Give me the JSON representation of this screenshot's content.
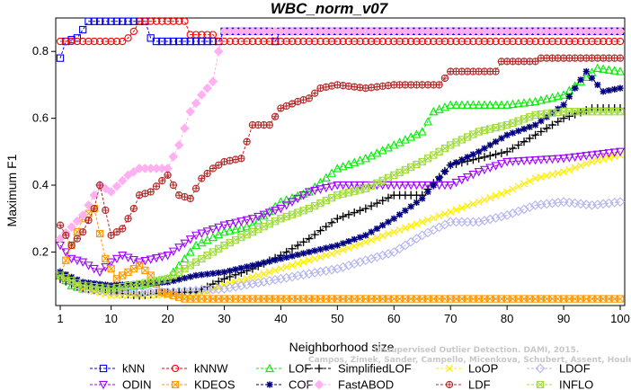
{
  "chart_data": {
    "type": "line",
    "title": "WBC_norm_v07",
    "xlabel": "Neighborhood size",
    "ylabel": "Maximum F1",
    "xlim": [
      1,
      100
    ],
    "ylim": [
      0.04,
      0.9
    ],
    "xticks": [
      1,
      10,
      20,
      30,
      40,
      50,
      60,
      70,
      80,
      90,
      100
    ],
    "yticks": [
      0.2,
      0.4,
      0.6,
      0.8
    ],
    "grid": false,
    "legend_position": "bottom",
    "watermark": [
      "Unsupervised Outlier Detection. DAMI, 2015.",
      "Campos, Zimek, Sander, Campello, Micenkova, Schubert, Assent, Houle"
    ],
    "series": [
      {
        "name": "kNN",
        "color": "#0000ff",
        "marker": "square",
        "points": [
          [
            1,
            0.78
          ],
          [
            2,
            0.83
          ],
          [
            4,
            0.84
          ],
          [
            6,
            0.89
          ],
          [
            16,
            0.89
          ],
          [
            17,
            0.84
          ],
          [
            18,
            0.83
          ],
          [
            29,
            0.83
          ],
          [
            30,
            0.86
          ],
          [
            38,
            0.86
          ],
          [
            39,
            0.83
          ],
          [
            40,
            0.86
          ],
          [
            100,
            0.86
          ]
        ]
      },
      {
        "name": "kNNW",
        "color": "#ff0000",
        "marker": "circle",
        "points": [
          [
            1,
            0.83
          ],
          [
            12,
            0.83
          ],
          [
            13,
            0.84
          ],
          [
            14,
            0.86
          ],
          [
            15,
            0.89
          ],
          [
            23,
            0.89
          ],
          [
            24,
            0.85
          ],
          [
            28,
            0.85
          ],
          [
            29,
            0.83
          ],
          [
            100,
            0.83
          ]
        ]
      },
      {
        "name": "LOF",
        "color": "#00ee00",
        "marker": "triangle-up",
        "points": [
          [
            1,
            0.13
          ],
          [
            3,
            0.1
          ],
          [
            5,
            0.09
          ],
          [
            10,
            0.09
          ],
          [
            15,
            0.1
          ],
          [
            20,
            0.12
          ],
          [
            25,
            0.22
          ],
          [
            30,
            0.26
          ],
          [
            35,
            0.28
          ],
          [
            40,
            0.35
          ],
          [
            45,
            0.38
          ],
          [
            50,
            0.45
          ],
          [
            55,
            0.48
          ],
          [
            60,
            0.52
          ],
          [
            65,
            0.56
          ],
          [
            67,
            0.62
          ],
          [
            70,
            0.64
          ],
          [
            75,
            0.64
          ],
          [
            80,
            0.64
          ],
          [
            85,
            0.65
          ],
          [
            90,
            0.67
          ],
          [
            93,
            0.71
          ],
          [
            96,
            0.75
          ],
          [
            100,
            0.74
          ]
        ]
      },
      {
        "name": "SimplifiedLOF",
        "color": "#000000",
        "marker": "plus",
        "points": [
          [
            1,
            0.12
          ],
          [
            5,
            0.09
          ],
          [
            10,
            0.08
          ],
          [
            15,
            0.07
          ],
          [
            20,
            0.08
          ],
          [
            25,
            0.08
          ],
          [
            30,
            0.12
          ],
          [
            35,
            0.15
          ],
          [
            40,
            0.19
          ],
          [
            45,
            0.24
          ],
          [
            50,
            0.3
          ],
          [
            55,
            0.33
          ],
          [
            60,
            0.37
          ],
          [
            65,
            0.37
          ],
          [
            70,
            0.46
          ],
          [
            75,
            0.48
          ],
          [
            80,
            0.5
          ],
          [
            85,
            0.55
          ],
          [
            90,
            0.6
          ],
          [
            95,
            0.63
          ],
          [
            100,
            0.63
          ]
        ]
      },
      {
        "name": "LoOP",
        "color": "#ffee00",
        "marker": "x",
        "points": [
          [
            1,
            0.14
          ],
          [
            5,
            0.09
          ],
          [
            10,
            0.07
          ],
          [
            20,
            0.07
          ],
          [
            25,
            0.07
          ],
          [
            30,
            0.1
          ],
          [
            40,
            0.15
          ],
          [
            50,
            0.2
          ],
          [
            55,
            0.23
          ],
          [
            60,
            0.26
          ],
          [
            65,
            0.29
          ],
          [
            70,
            0.32
          ],
          [
            75,
            0.35
          ],
          [
            80,
            0.38
          ],
          [
            85,
            0.42
          ],
          [
            90,
            0.44
          ],
          [
            95,
            0.47
          ],
          [
            100,
            0.49
          ]
        ]
      },
      {
        "name": "LDOF",
        "color": "#b4b4f0",
        "marker": "diamond",
        "points": [
          [
            1,
            0.14
          ],
          [
            5,
            0.09
          ],
          [
            10,
            0.08
          ],
          [
            20,
            0.08
          ],
          [
            30,
            0.09
          ],
          [
            40,
            0.12
          ],
          [
            50,
            0.15
          ],
          [
            60,
            0.2
          ],
          [
            65,
            0.25
          ],
          [
            70,
            0.29
          ],
          [
            75,
            0.29
          ],
          [
            80,
            0.31
          ],
          [
            85,
            0.34
          ],
          [
            90,
            0.35
          ],
          [
            95,
            0.34
          ],
          [
            100,
            0.35
          ]
        ]
      },
      {
        "name": "ODIN",
        "color": "#a000ff",
        "marker": "triangle-down",
        "points": [
          [
            1,
            0.22
          ],
          [
            3,
            0.18
          ],
          [
            5,
            0.17
          ],
          [
            8,
            0.14
          ],
          [
            10,
            0.17
          ],
          [
            12,
            0.19
          ],
          [
            15,
            0.17
          ],
          [
            20,
            0.19
          ],
          [
            25,
            0.25
          ],
          [
            30,
            0.28
          ],
          [
            35,
            0.3
          ],
          [
            40,
            0.33
          ],
          [
            45,
            0.38
          ],
          [
            50,
            0.4
          ],
          [
            60,
            0.4
          ],
          [
            70,
            0.4
          ],
          [
            75,
            0.44
          ],
          [
            80,
            0.47
          ],
          [
            90,
            0.48
          ],
          [
            100,
            0.5
          ]
        ]
      },
      {
        "name": "KDEOS",
        "color": "#ff9900",
        "marker": "square-x",
        "points": [
          [
            1,
            0.13
          ],
          [
            3,
            0.22
          ],
          [
            5,
            0.3
          ],
          [
            7,
            0.33
          ],
          [
            9,
            0.18
          ],
          [
            11,
            0.12
          ],
          [
            13,
            0.14
          ],
          [
            15,
            0.16
          ],
          [
            17,
            0.13
          ],
          [
            19,
            0.08
          ],
          [
            21,
            0.07
          ],
          [
            23,
            0.06
          ],
          [
            100,
            0.06
          ]
        ]
      },
      {
        "name": "COF",
        "color": "#000080",
        "marker": "star",
        "points": [
          [
            1,
            0.14
          ],
          [
            5,
            0.11
          ],
          [
            10,
            0.1
          ],
          [
            20,
            0.11
          ],
          [
            25,
            0.13
          ],
          [
            30,
            0.14
          ],
          [
            35,
            0.16
          ],
          [
            40,
            0.18
          ],
          [
            45,
            0.2
          ],
          [
            50,
            0.22
          ],
          [
            55,
            0.25
          ],
          [
            60,
            0.3
          ],
          [
            65,
            0.36
          ],
          [
            70,
            0.46
          ],
          [
            75,
            0.5
          ],
          [
            80,
            0.55
          ],
          [
            85,
            0.58
          ],
          [
            90,
            0.64
          ],
          [
            94,
            0.74
          ],
          [
            97,
            0.68
          ],
          [
            100,
            0.69
          ]
        ]
      },
      {
        "name": "FastABOD",
        "color": "#ffb0f0",
        "marker": "diamond-filled",
        "points": [
          [
            1,
            0.24
          ],
          [
            5,
            0.31
          ],
          [
            8,
            0.4
          ],
          [
            10,
            0.38
          ],
          [
            13,
            0.43
          ],
          [
            15,
            0.45
          ],
          [
            20,
            0.45
          ],
          [
            22,
            0.52
          ],
          [
            24,
            0.62
          ],
          [
            26,
            0.67
          ],
          [
            28,
            0.71
          ],
          [
            29,
            0.8
          ],
          [
            30,
            0.86
          ],
          [
            100,
            0.86
          ]
        ]
      },
      {
        "name": "LDF",
        "color": "#b42828",
        "marker": "circle-plus",
        "points": [
          [
            1,
            0.28
          ],
          [
            3,
            0.22
          ],
          [
            5,
            0.26
          ],
          [
            7,
            0.33
          ],
          [
            8,
            0.4
          ],
          [
            10,
            0.25
          ],
          [
            12,
            0.27
          ],
          [
            14,
            0.33
          ],
          [
            15,
            0.37
          ],
          [
            17,
            0.38
          ],
          [
            20,
            0.43
          ],
          [
            22,
            0.37
          ],
          [
            24,
            0.36
          ],
          [
            26,
            0.42
          ],
          [
            28,
            0.45
          ],
          [
            30,
            0.47
          ],
          [
            33,
            0.48
          ],
          [
            35,
            0.58
          ],
          [
            38,
            0.58
          ],
          [
            40,
            0.63
          ],
          [
            43,
            0.65
          ],
          [
            45,
            0.66
          ],
          [
            47,
            0.69
          ],
          [
            50,
            0.7
          ],
          [
            55,
            0.69
          ],
          [
            60,
            0.7
          ],
          [
            68,
            0.7
          ],
          [
            70,
            0.74
          ],
          [
            78,
            0.74
          ],
          [
            79,
            0.77
          ],
          [
            85,
            0.77
          ],
          [
            86,
            0.78
          ],
          [
            100,
            0.78
          ]
        ]
      },
      {
        "name": "INFLO",
        "color": "#a0dc3c",
        "marker": "square-x-green",
        "points": [
          [
            1,
            0.13
          ],
          [
            5,
            0.1
          ],
          [
            10,
            0.09
          ],
          [
            20,
            0.12
          ],
          [
            25,
            0.17
          ],
          [
            30,
            0.22
          ],
          [
            35,
            0.26
          ],
          [
            40,
            0.3
          ],
          [
            45,
            0.33
          ],
          [
            50,
            0.37
          ],
          [
            55,
            0.39
          ],
          [
            60,
            0.43
          ],
          [
            65,
            0.47
          ],
          [
            70,
            0.52
          ],
          [
            75,
            0.56
          ],
          [
            80,
            0.58
          ],
          [
            85,
            0.61
          ],
          [
            90,
            0.62
          ],
          [
            95,
            0.62
          ],
          [
            100,
            0.62
          ]
        ]
      }
    ]
  }
}
